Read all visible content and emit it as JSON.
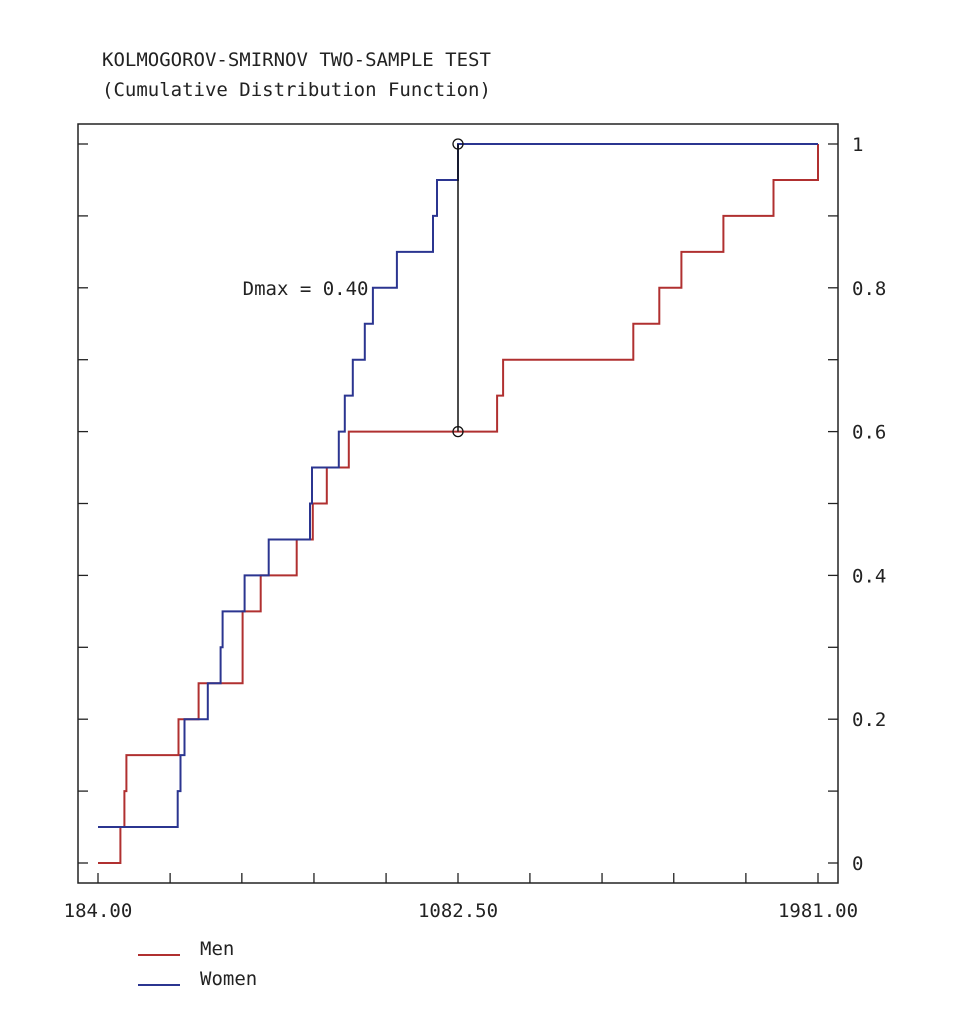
{
  "chart_data": {
    "type": "line",
    "step": true,
    "title": "KOLMOGOROV-SMIRNOV TWO-SAMPLE TEST",
    "subtitle": "(Cumulative Distribution Function)",
    "xlabel": "",
    "ylabel": "",
    "xlim": [
      184.0,
      1981.0
    ],
    "ylim": [
      0,
      1
    ],
    "x_tick_labels": [
      "184.00",
      "1082.50",
      "1981.00"
    ],
    "x_tick_values": [
      184.0,
      1082.5,
      1981.0
    ],
    "x_minor_ticks": [
      364,
      543,
      723,
      903,
      1262,
      1442,
      1621,
      1801
    ],
    "y_tick_labels": [
      "0",
      "0.2",
      "0.4",
      "0.6",
      "0.8",
      "1"
    ],
    "y_tick_values": [
      0,
      0.2,
      0.4,
      0.6,
      0.8,
      1
    ],
    "y_minor_ticks": [
      0.1,
      0.3,
      0.5,
      0.7,
      0.9
    ],
    "grid": false,
    "legend_position": "bottom-left",
    "series": [
      {
        "name": "Men",
        "color": "#b03030",
        "points": [
          [
            184,
            0
          ],
          [
            240,
            0.05
          ],
          [
            250,
            0.1
          ],
          [
            255,
            0.15
          ],
          [
            385,
            0.2
          ],
          [
            435,
            0.25
          ],
          [
            545,
            0.35
          ],
          [
            590,
            0.4
          ],
          [
            680,
            0.45
          ],
          [
            720,
            0.5
          ],
          [
            755,
            0.55
          ],
          [
            810,
            0.6
          ],
          [
            1180,
            0.65
          ],
          [
            1195,
            0.7
          ],
          [
            1520,
            0.75
          ],
          [
            1585,
            0.8
          ],
          [
            1640,
            0.85
          ],
          [
            1745,
            0.9
          ],
          [
            1870,
            0.95
          ],
          [
            1981,
            1.0
          ]
        ]
      },
      {
        "name": "Women",
        "color": "#2b3590",
        "points": [
          [
            184,
            0.05
          ],
          [
            383,
            0.1
          ],
          [
            390,
            0.15
          ],
          [
            400,
            0.2
          ],
          [
            458,
            0.25
          ],
          [
            490,
            0.3
          ],
          [
            495,
            0.35
          ],
          [
            550,
            0.4
          ],
          [
            610,
            0.45
          ],
          [
            713,
            0.5
          ],
          [
            718,
            0.55
          ],
          [
            785,
            0.6
          ],
          [
            800,
            0.65
          ],
          [
            820,
            0.7
          ],
          [
            850,
            0.75
          ],
          [
            870,
            0.8
          ],
          [
            930,
            0.85
          ],
          [
            1020,
            0.9
          ],
          [
            1030,
            0.95
          ],
          [
            1082.5,
            1.0
          ],
          [
            1981,
            1.0
          ]
        ]
      }
    ],
    "annotations": [
      {
        "text": "Dmax = 0.40",
        "x": 1082.5,
        "y_from": 0.6,
        "y_to": 1.0,
        "label_at": [
          545,
          0.79
        ]
      }
    ]
  }
}
